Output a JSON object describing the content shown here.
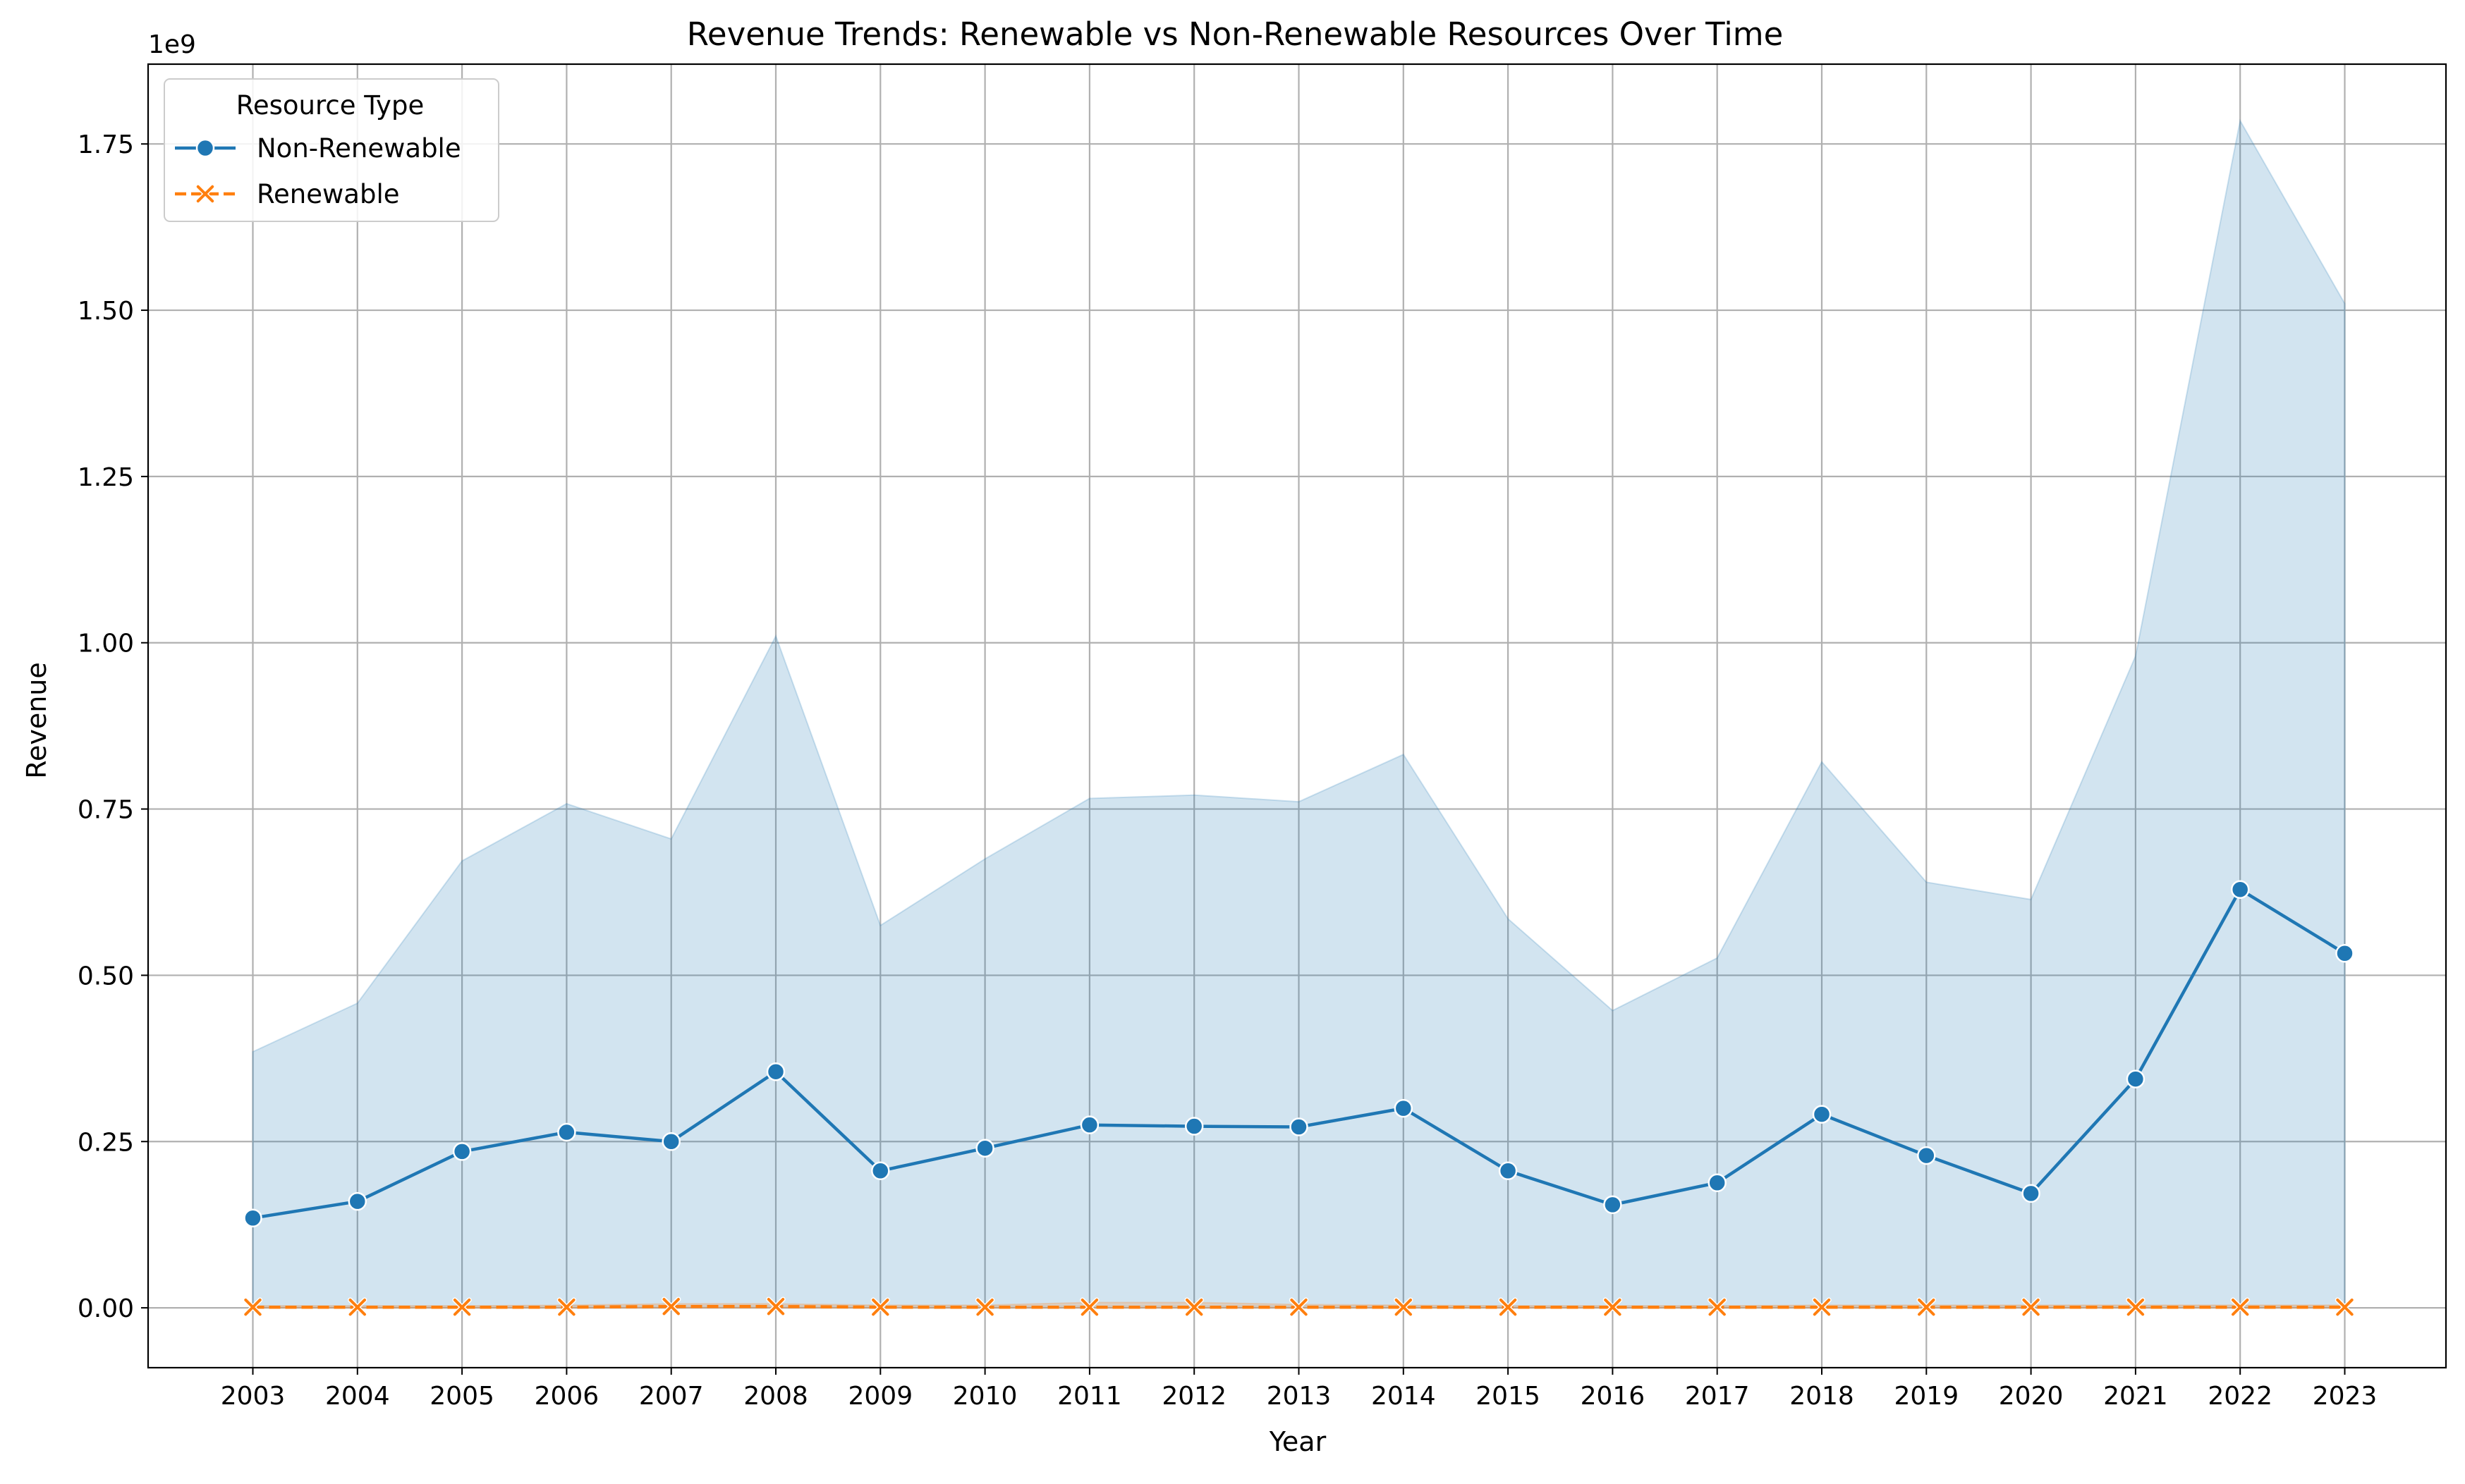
{
  "chart_data": {
    "type": "line",
    "title": "Revenue Trends: Renewable vs Non-Renewable Resources Over Time",
    "xlabel": "Year",
    "ylabel": "Revenue",
    "y_offset_label": "1e9",
    "ylim": [
      -0.09,
      1.87
    ],
    "yticks": [
      0.0,
      0.25,
      0.5,
      0.75,
      1.0,
      1.25,
      1.5,
      1.75
    ],
    "ytick_labels": [
      "0.00",
      "0.25",
      "0.50",
      "0.75",
      "1.00",
      "1.25",
      "1.50",
      "1.75"
    ],
    "x": [
      "2003",
      "2004",
      "2005",
      "2006",
      "2007",
      "2008",
      "2009",
      "2010",
      "2011",
      "2012",
      "2013",
      "2014",
      "2015",
      "2016",
      "2017",
      "2018",
      "2019",
      "2020",
      "2021",
      "2022",
      "2023"
    ],
    "grid": true,
    "legend": {
      "title": "Resource Type",
      "placement": "top-left"
    },
    "series": [
      {
        "name": "Non-Renewable",
        "color": "#1f77b4",
        "marker": "circle",
        "line_style": "solid",
        "values": [
          0.135,
          0.16,
          0.235,
          0.264,
          0.25,
          0.355,
          0.206,
          0.24,
          0.275,
          0.273,
          0.272,
          0.3,
          0.206,
          0.155,
          0.188,
          0.291,
          0.229,
          0.172,
          0.344,
          0.629,
          0.533
        ],
        "band_upper": [
          0.385,
          0.458,
          0.672,
          0.758,
          0.705,
          1.01,
          0.575,
          0.675,
          0.766,
          0.771,
          0.761,
          0.832,
          0.585,
          0.447,
          0.526,
          0.821,
          0.64,
          0.614,
          0.98,
          1.785,
          1.51
        ],
        "band_lower": [
          0.002,
          0.002,
          0.002,
          0.002,
          0.002,
          0.002,
          0.002,
          0.002,
          0.002,
          0.002,
          0.002,
          0.002,
          0.002,
          0.002,
          0.002,
          0.002,
          0.002,
          0.002,
          0.002,
          0.002,
          0.002
        ]
      },
      {
        "name": "Renewable",
        "color": "#ff7f0e",
        "marker": "x",
        "line_style": "dashed",
        "values": [
          0.001,
          0.001,
          0.001,
          0.001,
          0.002,
          0.002,
          0.001,
          0.001,
          0.001,
          0.001,
          0.001,
          0.001,
          0.001,
          0.001,
          0.001,
          0.001,
          0.001,
          0.001,
          0.001,
          0.001,
          0.001
        ],
        "band_upper": [
          0.003,
          0.003,
          0.003,
          0.004,
          0.006,
          0.006,
          0.004,
          0.004,
          0.008,
          0.008,
          0.005,
          0.004,
          0.003,
          0.003,
          0.003,
          0.004,
          0.004,
          0.004,
          0.004,
          0.004,
          0.004
        ],
        "band_lower": [
          0.0,
          0.0,
          0.0,
          0.0,
          0.0,
          0.0,
          0.0,
          0.0,
          0.0,
          0.0,
          0.0,
          0.0,
          0.0,
          0.0,
          0.0,
          0.0,
          0.0,
          0.0,
          0.0,
          0.0,
          0.0
        ]
      }
    ]
  }
}
